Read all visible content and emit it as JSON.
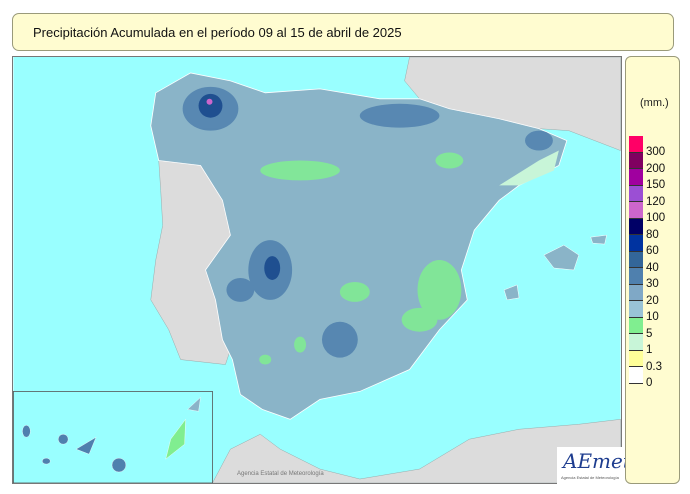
{
  "title": "Precipitación Acumulada en el período 09 al 15 de abril de 2025",
  "legend": {
    "unit": "(mm.)",
    "items": [
      {
        "label": "300",
        "color": "#ff0066"
      },
      {
        "label": "200",
        "color": "#800060"
      },
      {
        "label": "150",
        "color": "#a0009f"
      },
      {
        "label": "120",
        "color": "#9b4fd4"
      },
      {
        "label": "100",
        "color": "#cc66cc"
      },
      {
        "label": "80",
        "color": "#000066"
      },
      {
        "label": "60",
        "color": "#0033a0"
      },
      {
        "label": "40",
        "color": "#336699"
      },
      {
        "label": "30",
        "color": "#4f80ae"
      },
      {
        "label": "20",
        "color": "#7fa8c6"
      },
      {
        "label": "10",
        "color": "#99c3d6"
      },
      {
        "label": "5",
        "color": "#80ee90"
      },
      {
        "label": "1",
        "color": "#c8f5d8"
      },
      {
        "label": "0.3",
        "color": "#ffff99"
      },
      {
        "label": "0",
        "color": "#ffffff"
      }
    ]
  },
  "credit": "Agencia Estatal de Meteorología",
  "logo": {
    "name": "AEmet",
    "subtitle": "Agencia Estatal de Meteorología"
  },
  "colors": {
    "sea": "#99ffff",
    "land": "#dcdcdc",
    "panel": "#fffcd0"
  }
}
